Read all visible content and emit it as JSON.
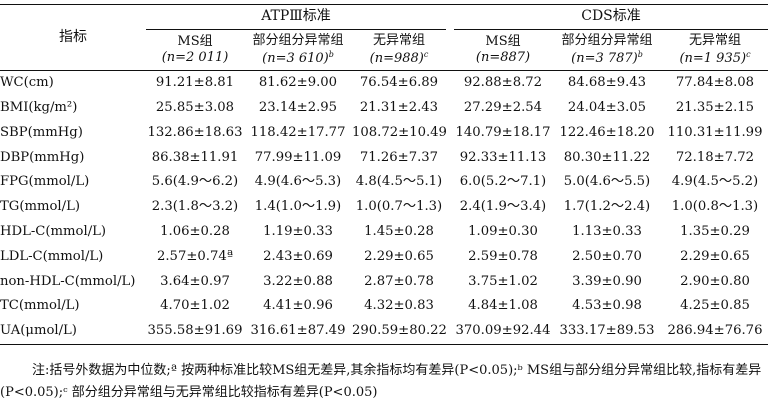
{
  "table": {
    "indicator_header": "指标",
    "groups": [
      {
        "label": "ATPⅢ标准"
      },
      {
        "label": "CDS标准"
      }
    ],
    "subheaders": [
      {
        "name": "MS组",
        "n": "(n=2 011)",
        "sup": ""
      },
      {
        "name": "部分组分异常组",
        "n": "(n=3 610)",
        "sup": "b"
      },
      {
        "name": "无异常组",
        "n": "(n=988)",
        "sup": "c"
      },
      {
        "name": "MS组",
        "n": "(n=887)",
        "sup": ""
      },
      {
        "name": "部分组分异常组",
        "n": "(n=3 787)",
        "sup": "b"
      },
      {
        "name": "无异常组",
        "n": "(n=1 935)",
        "sup": "c"
      }
    ],
    "rows": [
      {
        "indicator": "WC(cm)",
        "values": [
          "91.21±8.81",
          "81.62±9.00",
          "76.54±6.89",
          "92.88±8.72",
          "84.68±9.43",
          "77.84±8.08"
        ]
      },
      {
        "indicator": "BMI(kg/m²)",
        "values": [
          "25.85±3.08",
          "23.14±2.95",
          "21.31±2.43",
          "27.29±2.54",
          "24.04±3.05",
          "21.35±2.15"
        ]
      },
      {
        "indicator": "SBP(mmHg)",
        "values": [
          "132.86±18.63",
          "118.42±17.77",
          "108.72±10.49",
          "140.79±18.17",
          "122.46±18.20",
          "110.31±11.99"
        ]
      },
      {
        "indicator": "DBP(mmHg)",
        "values": [
          "86.38±11.91",
          "77.99±11.09",
          "71.26±7.37",
          "92.33±11.13",
          "80.30±11.22",
          "72.18±7.72"
        ]
      },
      {
        "indicator": "FPG(mmol/L)",
        "values": [
          "5.6(4.9～6.2)",
          "4.9(4.6～5.3)",
          "4.8(4.5～5.1)",
          "6.0(5.2～7.1)",
          "5.0(4.6～5.5)",
          "4.9(4.5～5.2)"
        ]
      },
      {
        "indicator": "TG(mmol/L)",
        "values": [
          "2.3(1.8～3.2)",
          "1.4(1.0～1.9)",
          "1.0(0.7～1.3)",
          "2.4(1.9～3.4)",
          "1.7(1.2～2.4)",
          "1.0(0.8～1.3)"
        ]
      },
      {
        "indicator": "HDL-C(mmol/L)",
        "values": [
          "1.06±0.28",
          "1.19±0.33",
          "1.45±0.28",
          "1.09±0.30",
          "1.13±0.33",
          "1.35±0.29"
        ]
      },
      {
        "indicator": "LDL-C(mmol/L)",
        "values": [
          "2.57±0.74ª",
          "2.43±0.69",
          "2.29±0.65",
          "2.59±0.78",
          "2.50±0.70",
          "2.29±0.65"
        ]
      },
      {
        "indicator": "non-HDL-C(mmol/L)",
        "values": [
          "3.64±0.97",
          "3.22±0.88",
          "2.87±0.78",
          "3.75±1.02",
          "3.39±0.90",
          "2.90±0.80"
        ]
      },
      {
        "indicator": "TC(mmol/L)",
        "values": [
          "4.70±1.02",
          "4.41±0.96",
          "4.32±0.83",
          "4.84±1.08",
          "4.53±0.98",
          "4.25±0.85"
        ]
      },
      {
        "indicator": "UA(μmol/L)",
        "values": [
          "355.58±91.69",
          "316.61±87.49",
          "290.59±80.22",
          "370.09±92.44",
          "333.17±89.53",
          "286.94±76.76"
        ]
      }
    ]
  },
  "note": "注:括号外数据为中位数;ª 按两种标准比较MS组无差异,其余指标均有差异(P<0.05);ᵇ MS组与部分组分异常组比较,指标有差异(P<0.05);ᶜ 部分组分异常组与无异常组比较指标有差异(P<0.05)"
}
